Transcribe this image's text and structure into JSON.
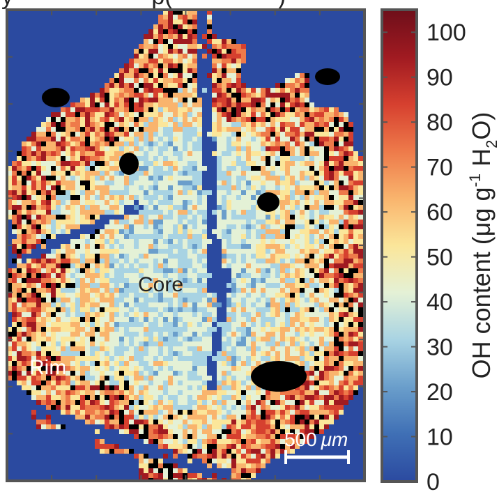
{
  "title_fragment": "y                     p(                )",
  "chart_data": {
    "type": "heatmap",
    "title": "",
    "annotations": [
      "Core",
      "Rim"
    ],
    "scale_bar": {
      "value": 500,
      "unit": "μm",
      "label_number": "500",
      "label_unit": "μm"
    },
    "colorbar": {
      "label": "OH content (μg g⁻¹ H₂O)",
      "label_parts": {
        "main": "OH content (μg g",
        "sup": "-1",
        "mid": " H",
        "sub": "2",
        "end": "O)"
      },
      "ticks": [
        0,
        10,
        20,
        30,
        40,
        50,
        60,
        70,
        80,
        90,
        100
      ],
      "range": [
        0,
        105
      ]
    },
    "background_color": "#2b4aa0",
    "missing_color": "#000000",
    "colormap": [
      "#2b4aa0",
      "#3f6fb5",
      "#6a9ecb",
      "#a8d3e3",
      "#e4f1d6",
      "#fbe69a",
      "#f9b46d",
      "#ee7a4a",
      "#d6402f",
      "#a01a21",
      "#6e0f1a"
    ]
  }
}
